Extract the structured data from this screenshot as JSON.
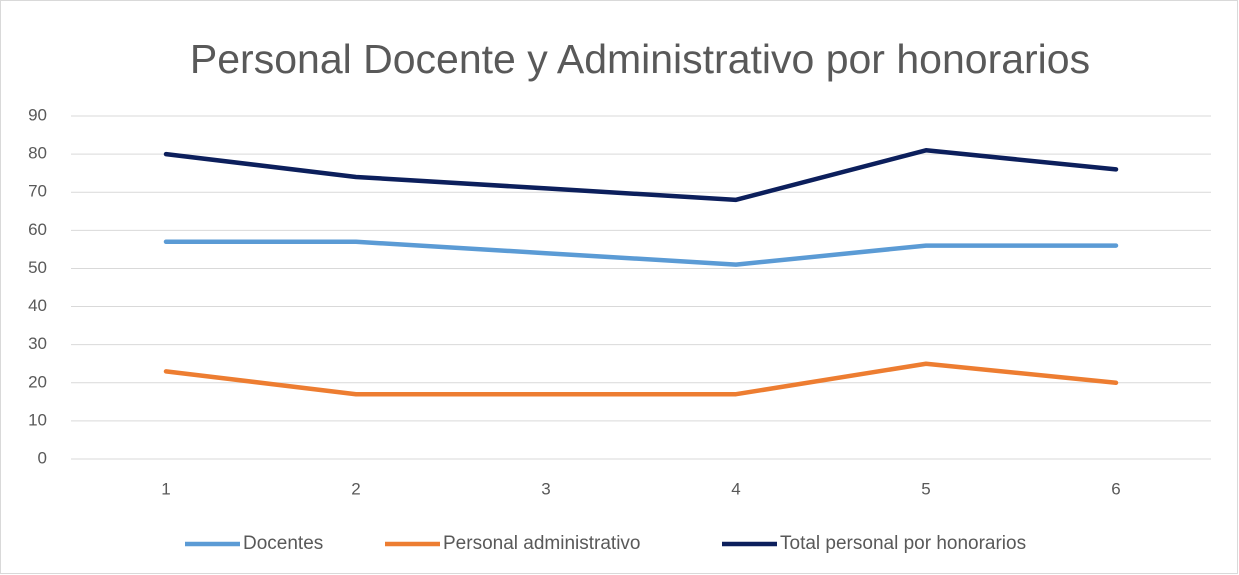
{
  "chart_data": {
    "type": "line",
    "title": "Personal Docente y Administrativo por honorarios",
    "categories": [
      "1",
      "2",
      "3",
      "4",
      "5",
      "6"
    ],
    "series": [
      {
        "name": "Docentes",
        "color": "#5b9bd5",
        "values": [
          57,
          57,
          54,
          51,
          56,
          56
        ]
      },
      {
        "name": "Personal administrativo",
        "color": "#ed7d31",
        "values": [
          23,
          17,
          17,
          17,
          25,
          20
        ]
      },
      {
        "name": "Total personal por honorarios",
        "color": "#0c1f5c",
        "values": [
          80,
          74,
          71,
          68,
          81,
          76
        ]
      }
    ],
    "ylim": [
      0,
      90
    ],
    "yticks": [
      0,
      10,
      20,
      30,
      40,
      50,
      60,
      70,
      80,
      90
    ],
    "grid": true,
    "legend": "bottom"
  }
}
